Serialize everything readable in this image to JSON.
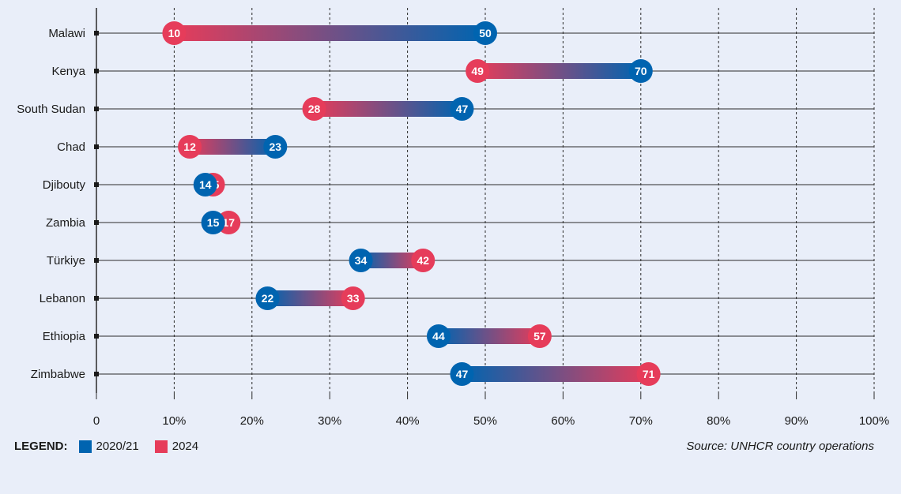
{
  "chart_data": {
    "type": "dumbbell",
    "categories": [
      "Malawi",
      "Kenya",
      "South Sudan",
      "Chad",
      "Djibouty",
      "Zambia",
      "Türkiye",
      "Lebanon",
      "Ethiopia",
      "Zimbabwe"
    ],
    "series": [
      {
        "name": "2020/21",
        "values": [
          50,
          70,
          47,
          23,
          14,
          15,
          34,
          22,
          44,
          47
        ]
      },
      {
        "name": "2024",
        "values": [
          10,
          49,
          28,
          12,
          15,
          17,
          42,
          33,
          57,
          71
        ]
      }
    ],
    "x_ticks": [
      "0",
      "10%",
      "20%",
      "30%",
      "40%",
      "50%",
      "60%",
      "70%",
      "80%",
      "90%",
      "100%"
    ],
    "xlim": [
      0,
      100
    ],
    "grid": true,
    "legend_position": "bottom-left"
  },
  "legend": {
    "title": "LEGEND:",
    "items": [
      {
        "label": "2020/21",
        "color": "#0064b0"
      },
      {
        "label": "2024",
        "color": "#e63c5a"
      }
    ]
  },
  "source": "Source: UNHCR country operations"
}
